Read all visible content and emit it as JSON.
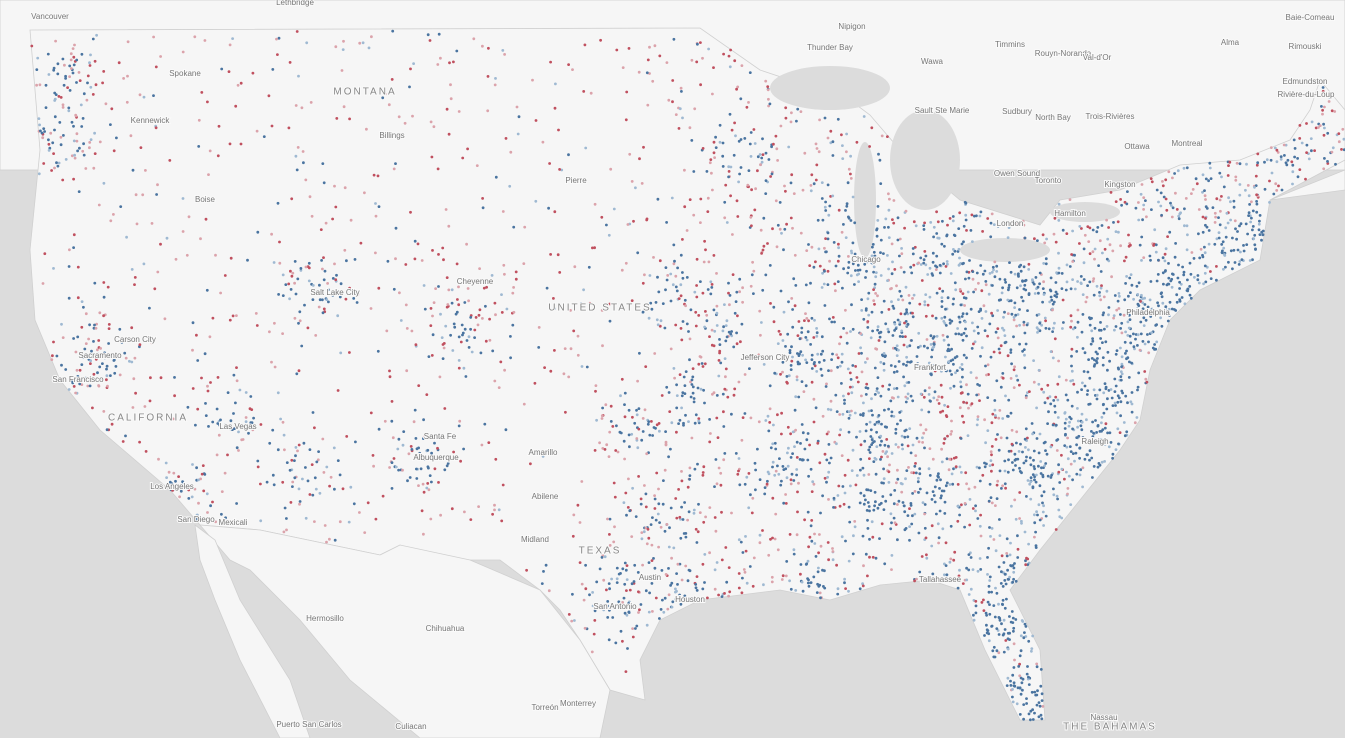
{
  "map": {
    "countries": [
      "UNITED STATES",
      "THE BAHAMAS"
    ],
    "regions": [
      "MONTANA",
      "CALIFORNIA",
      "TEXAS"
    ],
    "places": [
      "Vancouver",
      "Lethbridge",
      "Nipigon",
      "Thunder Bay",
      "Wawa",
      "Timmins",
      "Rouyn-Noranda",
      "Val-d'Or",
      "Alma",
      "Baie-Comeau",
      "Rimouski",
      "Rivière-du-Loup",
      "Edmundston",
      "Sault Ste Marie",
      "Sudbury",
      "North Bay",
      "Trois-Rivières",
      "Montreal",
      "Ottawa",
      "Owen Sound",
      "Toronto",
      "Kingston",
      "Hamilton",
      "London",
      "Spokane",
      "Kennewick",
      "Billings",
      "Pierre",
      "Boise",
      "Salt Lake City",
      "Cheyenne",
      "Carson City",
      "San Francisco",
      "Sacramento",
      "Las Vegas",
      "Los Angeles",
      "San Diego",
      "Mexicali",
      "Santa Fe",
      "Albuquerque",
      "Amarillo",
      "Abilene",
      "Midland",
      "Austin",
      "San Antonio",
      "Houston",
      "Jefferson City",
      "Chicago",
      "Frankfort",
      "Raleigh",
      "Tallahassee",
      "Philadelphia",
      "Hermosillo",
      "Chihuahua",
      "Monterrey",
      "Torreón",
      "Culiacan",
      "Puerto San Carlos",
      "Nassau"
    ]
  }
}
